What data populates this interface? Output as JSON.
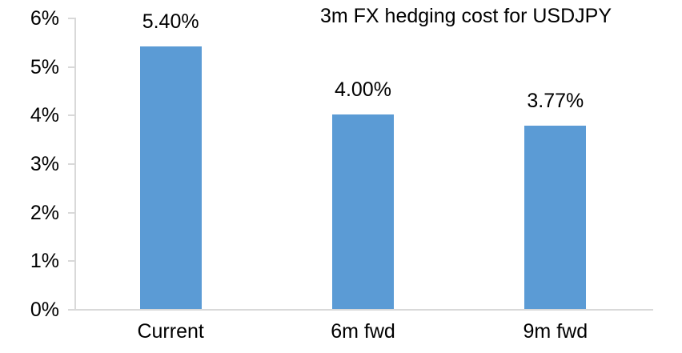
{
  "title": "3m FX hedging cost for USDJPY",
  "colors": {
    "bar": "#5B9BD5",
    "axis": "#D9D9D9",
    "text": "#000000",
    "background": "#FFFFFF"
  },
  "chart_data": {
    "type": "bar",
    "title": "3m FX hedging cost for USDJPY",
    "categories": [
      "Current",
      "6m fwd",
      "9m fwd"
    ],
    "values": [
      5.4,
      4.0,
      3.77
    ],
    "data_labels": [
      "5.40%",
      "4.00%",
      "3.77%"
    ],
    "xlabel": "",
    "ylabel": "",
    "ylim": [
      0,
      6
    ],
    "ytick_step": 1,
    "ytick_labels": [
      "0%",
      "1%",
      "2%",
      "3%",
      "4%",
      "5%",
      "6%"
    ],
    "grid": false,
    "legend": "none",
    "data_label_position": "above-bar",
    "series": [
      {
        "name": "3m FX hedging cost",
        "values": [
          5.4,
          4.0,
          3.77
        ]
      }
    ]
  }
}
